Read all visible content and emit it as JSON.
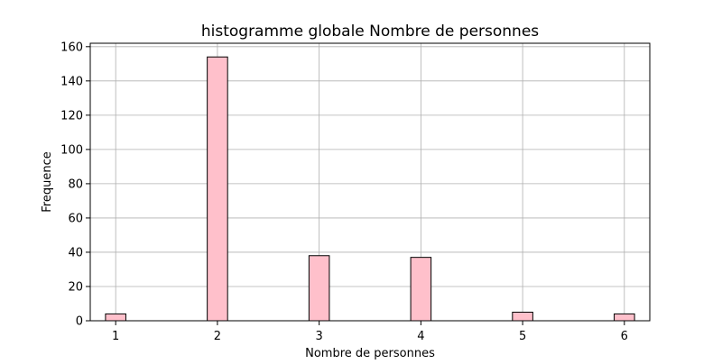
{
  "chart_data": {
    "type": "bar",
    "title": "histogramme globale Nombre de personnes",
    "xlabel": "Nombre de personnes",
    "ylabel": "Frequence",
    "grid": true,
    "bar_color": "#ffc0cb",
    "bar_edge_color": "#000000",
    "xlim": [
      0.75,
      6.25
    ],
    "ylim": [
      0,
      162
    ],
    "xticks": [
      1,
      2,
      3,
      4,
      5,
      6
    ],
    "yticks": [
      0,
      20,
      40,
      60,
      80,
      100,
      120,
      140,
      160
    ],
    "bin_width": 0.2,
    "bins": [
      {
        "x": 1,
        "value": 4
      },
      {
        "x": 2,
        "value": 154
      },
      {
        "x": 3,
        "value": 38
      },
      {
        "x": 4,
        "value": 37
      },
      {
        "x": 5,
        "value": 5
      },
      {
        "x": 6,
        "value": 4
      }
    ]
  }
}
